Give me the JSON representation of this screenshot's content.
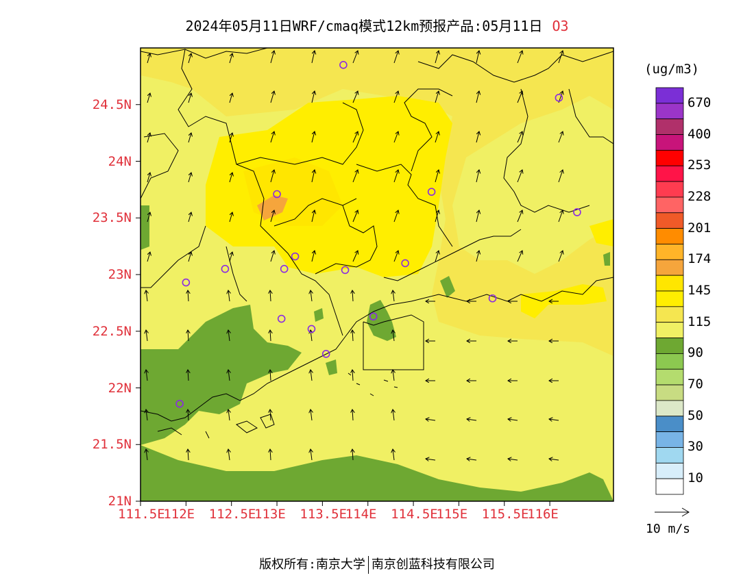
{
  "title": {
    "text": "2024年05月11日WRF/cmaq模式12km预报产品:05月11日",
    "species": "O3"
  },
  "axes": {
    "lat_labels": [
      "24.5N",
      "24N",
      "23.5N",
      "23N",
      "22.5N",
      "22N",
      "21.5N",
      "21N"
    ],
    "lon_labels": [
      "111.5E",
      "112E",
      "112.5E",
      "113E",
      "113.5E",
      "114E",
      "114.5E",
      "115E",
      "115.5E",
      "116E"
    ]
  },
  "legend": {
    "unit": "(ug/m3)",
    "levels": [
      "670",
      "400",
      "253",
      "228",
      "201",
      "174",
      "145",
      "115",
      "90",
      "70",
      "50",
      "30",
      "10"
    ],
    "colors": [
      "#7b2fd6",
      "#9b35c8",
      "#b0306a",
      "#c8147a",
      "#ff0000",
      "#ff1448",
      "#ff3c50",
      "#ff6464",
      "#f05a28",
      "#ff8c00",
      "#ffb428",
      "#f5a53c",
      "#ffe600",
      "#ffee00",
      "#f5e650",
      "#f0f064",
      "#6ea832",
      "#8cc850",
      "#b4dc6e",
      "#c8dc82",
      "#dce8c8",
      "#4a8ec8",
      "#78b4e6",
      "#a0d8f0",
      "#d8eefa",
      "#ffffff"
    ]
  },
  "wind_reference": "10 m/s",
  "footer": {
    "left": "版权所有:南京大学",
    "right": "南京创蓝科技有限公司"
  },
  "stations": [
    {
      "lon": 113.73,
      "lat": 24.85
    },
    {
      "lon": 116.1,
      "lat": 24.56
    },
    {
      "lon": 113.0,
      "lat": 23.71
    },
    {
      "lon": 114.7,
      "lat": 23.73
    },
    {
      "lon": 116.3,
      "lat": 23.55
    },
    {
      "lon": 112.43,
      "lat": 23.05
    },
    {
      "lon": 113.08,
      "lat": 23.05
    },
    {
      "lon": 113.2,
      "lat": 23.16
    },
    {
      "lon": 113.75,
      "lat": 23.04
    },
    {
      "lon": 114.41,
      "lat": 23.1
    },
    {
      "lon": 112.0,
      "lat": 22.93
    },
    {
      "lon": 115.37,
      "lat": 22.79
    },
    {
      "lon": 113.05,
      "lat": 22.61
    },
    {
      "lon": 113.38,
      "lat": 22.52
    },
    {
      "lon": 114.06,
      "lat": 22.63
    },
    {
      "lon": 113.54,
      "lat": 22.3
    },
    {
      "lon": 111.93,
      "lat": 21.86
    }
  ]
}
